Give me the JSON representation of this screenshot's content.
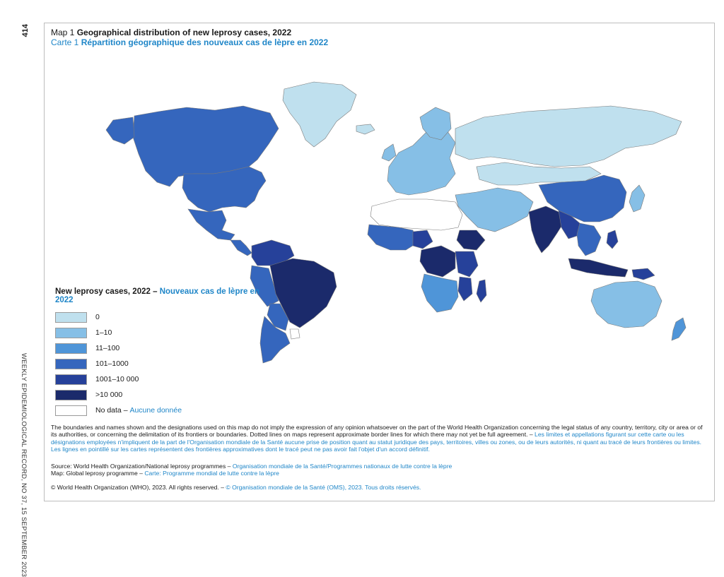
{
  "page_number": "414",
  "side_caption": "WEEKLY EPIDEMIOLOGICAL RECORD, NO 37, 15 SEPTEMBER 2023",
  "title": {
    "en_prefix": "Map 1",
    "en_text": "Geographical distribution of new leprosy cases, 2022",
    "fr_prefix": "Carte 1",
    "fr_text": "Répartition géographique des nouveaux cas de lèpre en 2022"
  },
  "legend": {
    "title_en": "New leprosy cases, 2022 –",
    "title_fr": "Nouveaux cas de lèpre en 2022",
    "items": [
      {
        "label": "0",
        "color": "#bfe0ee"
      },
      {
        "label": "1–10",
        "color": "#86bfe6"
      },
      {
        "label": "11–100",
        "color": "#4f95d8"
      },
      {
        "label": "101–1000",
        "color": "#3566bd"
      },
      {
        "label": "1001–10 000",
        "color": "#26419a"
      },
      {
        "label": ">10 000",
        "color": "#1b2a6b"
      }
    ],
    "no_data_en": "No data –",
    "no_data_fr": "Aucune donnée",
    "no_data_color": "#ffffff"
  },
  "colors": {
    "accent_fr": "#1f86c8",
    "frame_border": "#bdbdbd",
    "country_border": "#7a7a7a"
  },
  "disclaimer": {
    "en": "The boundaries and names shown and the designations used on this map do not imply the expression of any opinion whatsoever on the part of the World Health Organization concerning the legal status of any country, territory, city or area or of its authorities, or concerning the delimitation of its frontiers or boundaries. Dotted lines on maps represent approximate border lines for which there may not yet be full agreement. –",
    "fr": "Les limites et appellations figurant sur cette carte ou les désignations employées n'impliquent de la part de l'Organisation mondiale de la Santé aucune prise de position quant au statut juridique des pays, territoires, villes ou zones, ou de leurs autorités, ni quant au tracé de leurs frontières ou limites. Les lignes en pointillé sur les cartes représentent des frontières approximatives dont le tracé peut ne pas avoir fait l'objet d'un accord définitif."
  },
  "source": {
    "source_en": "Source: World Health Organization/National leprosy programmes –",
    "source_fr": "Organisation mondiale de la Santé/Programmes nationaux de lutte contre la lèpre",
    "map_en": "Map: Global leprosy programme –",
    "map_fr": "Carte: Programme mondial de lutte contre la lèpre"
  },
  "copyright": {
    "en": "© World Health Organization (WHO), 2023. All rights reserved. –",
    "fr": "© Organisation mondiale de la Santé (OMS), 2023. Tous droits réservés."
  },
  "map_regions": {
    "greenland": "0",
    "canada": "101–1000",
    "usa": "101–1000",
    "mexico": "101–1000",
    "central_america": "101–1000",
    "colombia_venezuela": "1001–10 000",
    "ecuador_peru": "101–1000",
    "brazil": ">10 000",
    "bolivia_paraguay": "101–1000",
    "argentina_chile": "101–1000",
    "uruguay": "No data",
    "europe": "1–10",
    "russia": "0",
    "kazakhstan_mongolia": "0",
    "china": "101–1000",
    "india": ">10 000",
    "nepal_bangladesh_myanmar": "1001–10 000",
    "southeast_asia": "101–1000",
    "indonesia": ">10 000",
    "philippines": "1001–10 000",
    "japan_korea": "1–10",
    "middle_east": "1–10",
    "north_africa": "No data",
    "west_africa": "101–1000",
    "nigeria": "1001–10 000",
    "drc": ">10 000",
    "ethiopia": ">10 000",
    "east_africa": "1001–10 000",
    "mozambique": "1001–10 000",
    "madagascar": "1001–10 000",
    "southern_africa": "11–100",
    "australia": "1–10",
    "new_zealand": "11–100",
    "papua_new_guinea": "1001–10 000"
  }
}
